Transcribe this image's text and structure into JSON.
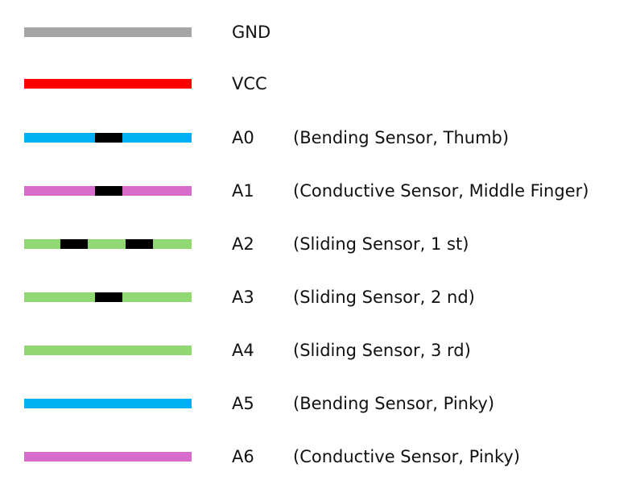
{
  "colors": {
    "gray": "#A6A6A6",
    "red": "#FF0000",
    "blue": "#00B0F0",
    "pink": "#D76CCB",
    "green": "#92D872",
    "marker": "#000000"
  },
  "legend": {
    "rows": [
      {
        "pin": "GND",
        "desc": "",
        "color": "#A6A6A6",
        "marker_count": 0
      },
      {
        "pin": "VCC",
        "desc": "",
        "color": "#FF0000",
        "marker_count": 0
      },
      {
        "pin": "A0",
        "desc": "(Bending Sensor, Thumb)",
        "color": "#00B0F0",
        "marker_count": 1
      },
      {
        "pin": "A1",
        "desc": "(Conductive Sensor, Middle Finger)",
        "color": "#D76CCB",
        "marker_count": 1
      },
      {
        "pin": "A2",
        "desc": "(Sliding Sensor, 1 st)",
        "color": "#92D872",
        "marker_count": 2
      },
      {
        "pin": "A3",
        "desc": "(Sliding Sensor, 2 nd)",
        "color": "#92D872",
        "marker_count": 1
      },
      {
        "pin": "A4",
        "desc": "(Sliding Sensor, 3 rd)",
        "color": "#92D872",
        "marker_count": 0
      },
      {
        "pin": "A5",
        "desc": "(Bending Sensor, Pinky)",
        "color": "#00B0F0",
        "marker_count": 0
      },
      {
        "pin": "A6",
        "desc": "(Conductive Sensor, Pinky)",
        "color": "#D76CCB",
        "marker_count": 0
      }
    ]
  }
}
